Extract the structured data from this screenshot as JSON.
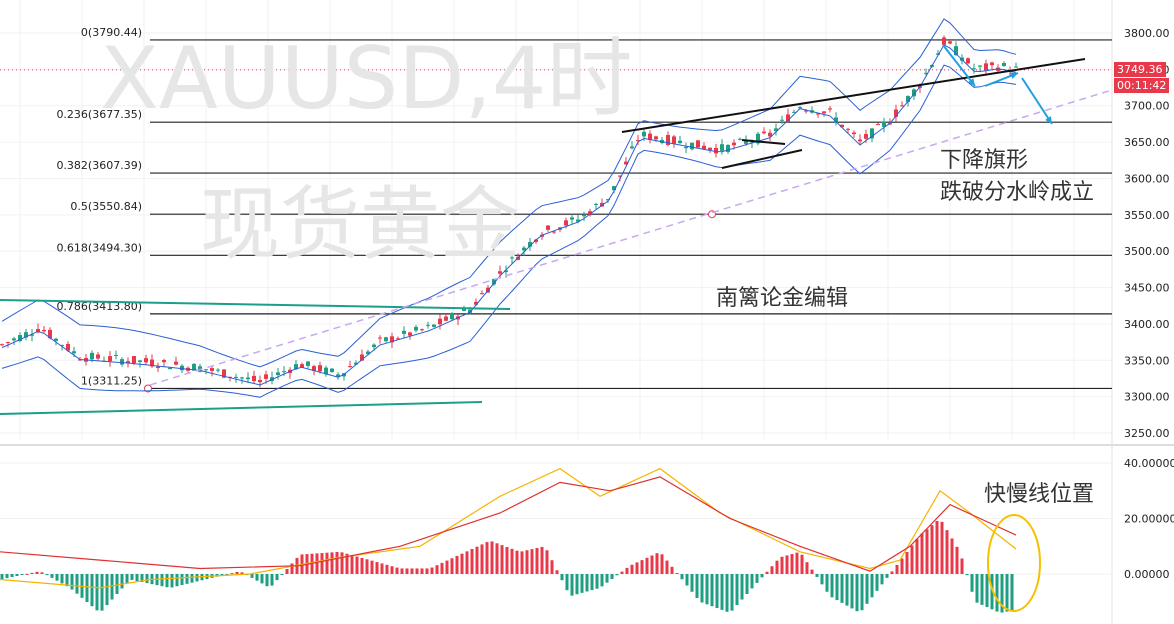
{
  "chart_data": [
    {
      "type": "candlestick",
      "symbol": "XAUUSD",
      "timeframe": "4时",
      "watermark": "XAUUSD,4时",
      "watermark_sub": "现货黄金",
      "ylim": [
        3230,
        3835
      ],
      "y_ticks": [
        "3800.00",
        "3750.00",
        "3700.00",
        "3650.00",
        "3600.00",
        "3550.00",
        "3500.00",
        "3450.00",
        "3400.00",
        "3350.00",
        "3300.00",
        "3250.00"
      ],
      "last_price": "3749.36",
      "countdown": "00:11:42",
      "price_tag_color": "#e8394a",
      "countdown_tag_color": "#e8394a",
      "fib_levels": [
        {
          "label": "0(3790.44)",
          "value": 3790.44
        },
        {
          "label": "0.236(3677.35)",
          "value": 3677.35
        },
        {
          "label": "0.382(3607.39)",
          "value": 3607.39
        },
        {
          "label": "0.5(3550.84)",
          "value": 3550.84
        },
        {
          "label": "0.618(3494.30)",
          "value": 3494.3
        },
        {
          "label": "0.786(3413.80)",
          "value": 3413.8
        },
        {
          "label": "1(3311.25)",
          "value": 3311.25
        }
      ],
      "annotations": [
        "下降旗形",
        "跌破分水岭成立",
        "南篱论金编辑"
      ],
      "up_color": "#e8394a",
      "down_color": "#1e9e82",
      "bollinger_color": "#2a5fd6",
      "trendline_color": "#1aa08a",
      "dashed_line_color": "#c8a8f0",
      "arrow_color": "#1fa0e0"
    },
    {
      "type": "macd",
      "ylim": [
        -45,
        45
      ],
      "y_ticks": [
        "40.00000",
        "20.00000",
        "0.00000"
      ],
      "fast_color": "#f5b400",
      "slow_color": "#e03030",
      "annotation": "快慢线位置",
      "ellipse_color": "#f5c000"
    }
  ]
}
